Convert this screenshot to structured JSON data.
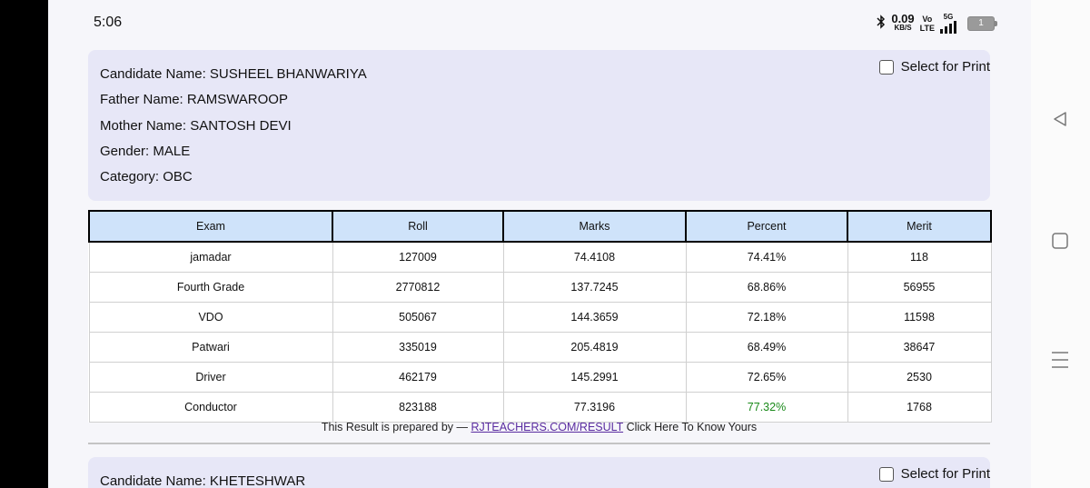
{
  "status_bar": {
    "time": "5:06",
    "speed_value": "0.09",
    "speed_unit": "KB/S",
    "volte_top": "Vo",
    "volte_bottom": "LTE",
    "network": "5G",
    "battery": "1"
  },
  "candidate1": {
    "name_line": "Candidate Name: SUSHEEL BHANWARIYA",
    "father_line": "Father Name: RAMSWAROOP",
    "mother_line": "Mother Name: SANTOSH DEVI",
    "gender_line": "Gender: MALE",
    "category_line": "Category: OBC",
    "print_label": "Select for Print"
  },
  "table": {
    "headers": [
      "Exam",
      "Roll",
      "Marks",
      "Percent",
      "Merit"
    ],
    "rows": [
      [
        "jamadar",
        "127009",
        "74.4108",
        "74.41%",
        "118"
      ],
      [
        "Fourth Grade",
        "2770812",
        "137.7245",
        "68.86%",
        "56955"
      ],
      [
        "VDO",
        "505067",
        "144.3659",
        "72.18%",
        "11598"
      ],
      [
        "Patwari",
        "335019",
        "205.4819",
        "68.49%",
        "38647"
      ],
      [
        "Driver",
        "462179",
        "145.2991",
        "72.65%",
        "2530"
      ],
      [
        "Conductor",
        "823188",
        "77.3196",
        "77.32%",
        "1768"
      ]
    ]
  },
  "footer": {
    "prefix": "This Result is prepared by — ",
    "link": "RJTEACHERS.COM/RESULT",
    "suffix": " Click Here To Know Yours"
  },
  "candidate2": {
    "name_line": "Candidate Name: KHETESHWAR",
    "print_label": "Select for Print"
  },
  "colors": {
    "card_bg": "#e7e7f7",
    "header_bg": "#cfe3fa",
    "highlight_green": "#1a8a1a",
    "link_purple": "#5a2ca0"
  }
}
